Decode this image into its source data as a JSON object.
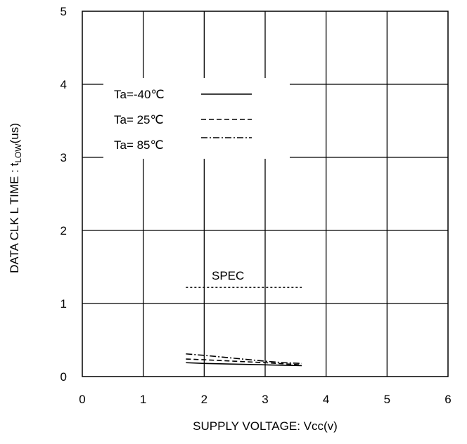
{
  "chart_data": {
    "type": "line",
    "xlabel": "SUPPLY VOLTAGE: Vcc(v)",
    "ylabel_main": "DATA CLK L TIME : t",
    "ylabel_sub": "LOW",
    "ylabel_tail": "(us)",
    "xlim": [
      0,
      6
    ],
    "ylim": [
      0,
      5
    ],
    "x_ticks": [
      "0",
      "1",
      "2",
      "3",
      "4",
      "5",
      "6"
    ],
    "y_ticks": [
      "0",
      "1",
      "2",
      "3",
      "4",
      "5"
    ],
    "grid": true,
    "legend_position": "upper-left",
    "series": [
      {
        "name": "Ta=-40℃",
        "style": "solid",
        "x": [
          1.7,
          2.0,
          2.5,
          3.0,
          3.6
        ],
        "y": [
          0.19,
          0.18,
          0.17,
          0.16,
          0.15
        ]
      },
      {
        "name": "Ta= 25℃",
        "style": "dashed",
        "x": [
          1.7,
          2.0,
          2.5,
          3.0,
          3.6
        ],
        "y": [
          0.24,
          0.23,
          0.21,
          0.19,
          0.16
        ]
      },
      {
        "name": "Ta= 85℃",
        "style": "dashdot",
        "x": [
          1.7,
          2.0,
          2.5,
          3.0,
          3.3,
          3.6
        ],
        "y": [
          0.31,
          0.29,
          0.25,
          0.21,
          0.19,
          0.18
        ]
      }
    ],
    "annotations": [
      {
        "label": "SPEC",
        "x": [
          1.7,
          3.6
        ],
        "y": 1.22,
        "style": "dotted"
      }
    ]
  }
}
